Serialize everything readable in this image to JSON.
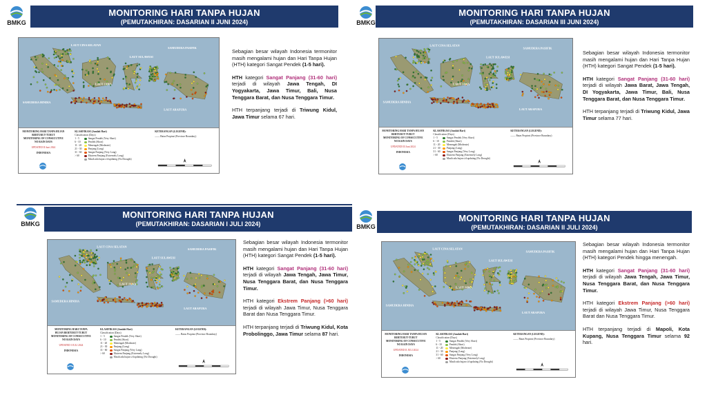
{
  "logo_text": "BMKG",
  "common": {
    "legend_title": "KETERANGAN (LEGEND):",
    "legend_line": "Batas Propinsi (Province Boundary)",
    "class_title": "KLASIFIKASI (Jumlah Hari)",
    "class_sub": "Classification (Days)",
    "left_title": "MONITORING HARI TANPA HUJAN BERTURUT-TURUT",
    "left_sub": "MONITORING OF CONSECUTIVE NO RAIN DAYS",
    "left_country": "INDONESIA",
    "classes": [
      {
        "range": "1 - 5",
        "label": "Sangat Pendek (Very Short)",
        "color": "#2e7d32"
      },
      {
        "range": "6 - 10",
        "label": "Pendek (Short)",
        "color": "#8bc34a"
      },
      {
        "range": "11 - 20",
        "label": "Menengah (Moderate)",
        "color": "#ffeb3b"
      },
      {
        "range": "21 - 30",
        "label": "Panjang (Long)",
        "color": "#ff9800"
      },
      {
        "range": "31 - 60",
        "label": "Sangat Panjang (Very Long)",
        "color": "#e65100"
      },
      {
        "range": "> 60",
        "label": "Ekstrem Panjang (Extremely Long)",
        "color": "#8b1a1a"
      },
      {
        "range": "",
        "label": "Masih ada hujan s/d updating (No Drought)",
        "color": "#9e9e9e"
      }
    ],
    "map_labels": {
      "scs": "LAUT CINA SELATAN",
      "pacific": "SAMUDERA PASIFIK",
      "indian": "SAMUDERA HINDIA",
      "java_sea": "LAUT JAWA",
      "arafura": "LAUT ARAFURA",
      "sulawesi_sea": "LAUT SULAWESI"
    }
  },
  "panels": [
    {
      "title": "MONITORING HARI TANPA HUJAN",
      "subtitle": "(PEMUTAKHIRAN: DASARIAN II JUNI 2024)",
      "updated": "UPDATED II Juni 2024",
      "p1_a": "Sebagian besar wilayah Indonesia termonitor masih mengalami hujan dan Hari Tanpa Hujan (HTH) kategori Sangat Pendek ",
      "p1_b": "(1-5 hari).",
      "p2_a": "HTH",
      "p2_b": " kategori ",
      "p2_c": "Sangat Panjang (31-60 hari)",
      "p2_d": " terjadi di wilayah ",
      "p2_e": "Jawa Tengah, DI Yogyakarta, Jawa Timur, Bali, Nusa Tenggara Barat, dan Nusa Tenggara Timur.",
      "p3_a": "HTH terpanjang terjadi di ",
      "p3_b": "Triwung Kidul, Jawa Timur",
      "p3_c": " selama ",
      "p3_d": "67",
      "p3_e": " hari."
    },
    {
      "title": "MONITORING HARI TANPA HUJAN",
      "subtitle": "(PEMUTAKHIRAN: DASARIAN III JUNI 2024)",
      "updated": "UPDATED III Juni 2024",
      "p1_a": "Sebagian besar wilayah Indonesia termonitor masih mengalami hujan dan Hari Tanpa Hujan (HTH) kategori Sangat Pendek ",
      "p1_b": "(1-5 hari).",
      "p2_a": "HTH",
      "p2_b": " kategori ",
      "p2_c": "Sangat Panjang (31-60 hari)",
      "p2_d": " terjadi di wilayah ",
      "p2_e": "Jawa Barat, Jawa Tengah, DI Yogyakarta, Jawa Timur, Bali, Nusa Tenggara Barat, dan Nusa Tenggara Timur.",
      "p3_a": "HTH terpanjang terjadi di ",
      "p3_b": "Triwung Kidul, Jawa Timur",
      "p3_c": " selama ",
      "p3_d": "77",
      "p3_e": " hari."
    },
    {
      "title": "MONITORING HARI TANPA HUJAN",
      "subtitle": "(PEMUTAKHIRAN: DASARIAN I JULI 2024)",
      "updated": "UPDATED I JULI 2024",
      "p1_a": "Sebagian besar wilayah Indonesia termonitor masih mengalami hujan dan Hari Tanpa Hujan (HTH) kategori Sangat Pendek ",
      "p1_b": "(1-5 hari).",
      "p2_a": "HTH",
      "p2_b": " kategori ",
      "p2_c": "Sangat Panjang (31-60 hari)",
      "p2_d": " terjadi di wilayah ",
      "p2_e": "Jawa Tengah, Jawa Timur, Nusa Tenggara Barat, dan Nusa Tenggara Timur.",
      "p4_a": "HTH kategori ",
      "p4_b": "Ekstrem Panjang (>60 hari)",
      "p4_c": " terjadi di wilayah Jawa Timur, Nusa Tenggara Barat dan Nusa Tenggara Timur.",
      "p3_a": "HTH terpanjang terjadi di ",
      "p3_b": "Triwung Kidul, Kota Probolinggo, Jawa Timur",
      "p3_c": " selama ",
      "p3_d": "87",
      "p3_e": " hari."
    },
    {
      "title": "MONITORING HARI TANPA HUJAN",
      "subtitle": "(PEMUTAKHIRAN: DASARIAN II JULI 2024)",
      "updated": "UPDATED II JULI 2024",
      "p1_a": "Sebagian besar wilayah Indonesia termonitor masih mengalami hujan dan Hari Tanpa Hujan (HTH) kategori Pendek hingga menengah.",
      "p2_a": "HTH",
      "p2_b": " kategori ",
      "p2_c": "Sangat Panjang (31-60 hari)",
      "p2_d": " terjadi di wilayah ",
      "p2_e": "Jawa Tengah, Jawa Timur, Nusa Tenggara Barat, dan Nusa Tenggara Timur.",
      "p4_a": "HTH kategori ",
      "p4_b": "Ekstrem Panjang (>60 hari)",
      "p4_c": " terjadi di wilayah Jawa Timur, Nusa Tenggara Barat dan Nusa Tenggara Timur.",
      "p3_a": "HTH terpanjang terjadi di ",
      "p3_b": "Mapoli, Kota Kupang, Nusa Tenggara Timur",
      "p3_c": " selama ",
      "p3_d": "92",
      "p3_e": " hari."
    }
  ]
}
